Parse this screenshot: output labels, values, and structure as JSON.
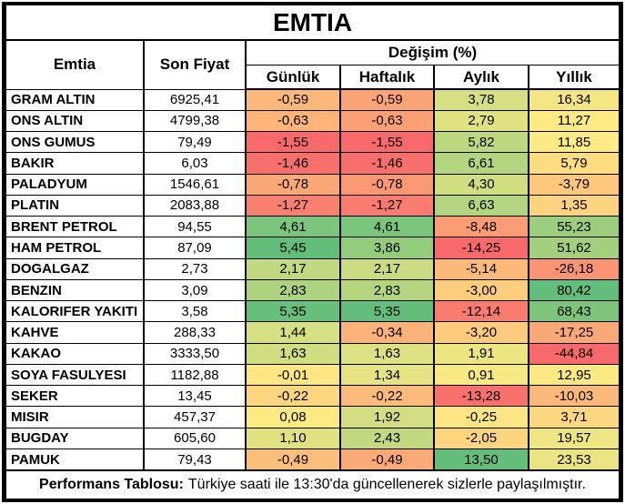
{
  "table": {
    "title": "EMTIA",
    "col_emtia": "Emtia",
    "col_price": "Son Fiyat",
    "col_change_group": "Değişim (%)",
    "periods": [
      "Günlük",
      "Haftalık",
      "Aylık",
      "Yıllık"
    ],
    "period_keys": [
      "gunluk",
      "haftalik",
      "aylik",
      "yillik"
    ]
  },
  "chart_data": {
    "type": "table",
    "title": "EMTIA",
    "columns": [
      "Emtia",
      "Son Fiyat",
      "Günlük",
      "Haftalık",
      "Aylık",
      "Yıllık"
    ],
    "change_group_label": "Değişim (%)",
    "decimal_separator": ",",
    "color_scale": {
      "min_color": "#F8696B",
      "mid_color": "#FFEB84",
      "max_color": "#63BE7B",
      "applied": "per-column 3-color scale"
    },
    "rows": [
      {
        "name": "GRAM ALTIN",
        "price": "6925,41",
        "changes": [
          "-0,59",
          "-0,59",
          "3,78",
          "16,34"
        ],
        "colors": [
          "#FCB87A",
          "#FBA476",
          "#D6DF81",
          "#F4E783"
        ]
      },
      {
        "name": "ONS ALTIN",
        "price": "4799,38",
        "changes": [
          "-0,63",
          "-0,63",
          "2,79",
          "11,27"
        ],
        "colors": [
          "#FCB479",
          "#FBA175",
          "#E1E282",
          "#FFEA83"
        ]
      },
      {
        "name": "ONS GUMUS",
        "price": "79,49",
        "changes": [
          "-1,55",
          "-1,55",
          "5,82",
          "11,85"
        ],
        "colors": [
          "#F8696B",
          "#F8696B",
          "#BED880",
          "#FEEB84"
        ]
      },
      {
        "name": "BAKIR",
        "price": "6,03",
        "changes": [
          "-1,46",
          "-1,46",
          "6,61",
          "5,79"
        ],
        "colors": [
          "#F8706C",
          "#F86E6C",
          "#B4D57F",
          "#FEDD81"
        ]
      },
      {
        "name": "PALADYUM",
        "price": "1546,61",
        "changes": [
          "-0,78",
          "-0,78",
          "4,30",
          "-3,79"
        ],
        "colors": [
          "#FBA877",
          "#FA9874",
          "#D0DD81",
          "#FDC77D"
        ]
      },
      {
        "name": "PLATIN",
        "price": "2083,88",
        "changes": [
          "-1,27",
          "-1,27",
          "6,63",
          "1,35"
        ],
        "colors": [
          "#F9806F",
          "#F97A6E",
          "#B4D57F",
          "#FDD37F"
        ]
      },
      {
        "name": "BRENT PETROL",
        "price": "94,55",
        "changes": [
          "4,61",
          "4,61",
          "-8,48",
          "55,23"
        ],
        "colors": [
          "#7BC57C",
          "#7BC57C",
          "#FA9C74",
          "#9CCE7E"
        ]
      },
      {
        "name": "HAM PETROL",
        "price": "87,09",
        "changes": [
          "5,45",
          "3,86",
          "-14,25",
          "51,62"
        ],
        "colors": [
          "#63BE7B",
          "#93CC7D",
          "#F8696B",
          "#A4D07E"
        ]
      },
      {
        "name": "DOGALGAZ",
        "price": "2,73",
        "changes": [
          "2,17",
          "2,17",
          "-5,14",
          "-26,18"
        ],
        "colors": [
          "#C1D980",
          "#CADB81",
          "#FCBA7A",
          "#FA9473"
        ]
      },
      {
        "name": "BENZIN",
        "price": "3,09",
        "changes": [
          "2,83",
          "2,83",
          "-3,00",
          "80,42"
        ],
        "colors": [
          "#AED37F",
          "#B5D57F",
          "#FDCD7E",
          "#63BE7B"
        ]
      },
      {
        "name": "KALORIFER YAKITI",
        "price": "3,58",
        "changes": [
          "5,35",
          "5,35",
          "-12,14",
          "68,43"
        ],
        "colors": [
          "#66BF7B",
          "#63BE7B",
          "#F97B6E",
          "#7EC57C"
        ]
      },
      {
        "name": "KAHVE",
        "price": "288,33",
        "changes": [
          "1,44",
          "-0,34",
          "-3,20",
          "-17,25"
        ],
        "colors": [
          "#D6DF81",
          "#FCB379",
          "#FDCB7D",
          "#FBA877"
        ]
      },
      {
        "name": "KAKAO",
        "price": "3333,50",
        "changes": [
          "1,63",
          "1,63",
          "1,91",
          "-44,84"
        ],
        "colors": [
          "#D1DD81",
          "#DCE182",
          "#ECE582",
          "#F8696B"
        ]
      },
      {
        "name": "SOYA FASULYESI",
        "price": "1182,88",
        "changes": [
          "-0,01",
          "1,34",
          "0,91",
          "12,95"
        ],
        "colors": [
          "#FEE783",
          "#E5E382",
          "#F8E983",
          "#FBEA83"
        ]
      },
      {
        "name": "SEKER",
        "price": "13,45",
        "changes": [
          "-0,22",
          "-0,22",
          "-13,28",
          "-10,03"
        ],
        "colors": [
          "#FDD680",
          "#FCBB7A",
          "#F8716C",
          "#FCB97A"
        ]
      },
      {
        "name": "MISIR",
        "price": "457,37",
        "changes": [
          "0,08",
          "1,92",
          "-0,25",
          "3,71"
        ],
        "colors": [
          "#FEEA83",
          "#D2DE81",
          "#FEE583",
          "#FED880"
        ]
      },
      {
        "name": "BUGDAY",
        "price": "605,60",
        "changes": [
          "1,10",
          "2,43",
          "-2,05",
          "19,57"
        ],
        "colors": [
          "#E0E282",
          "#C2D980",
          "#FDD57F",
          "#EEE683"
        ]
      },
      {
        "name": "PAMUK",
        "price": "79,43",
        "changes": [
          "-0,49",
          "-0,49",
          "13,50",
          "23,53"
        ],
        "colors": [
          "#FCBF7B",
          "#FBAA77",
          "#63BE7B",
          "#EAE582"
        ]
      }
    ]
  },
  "footer": {
    "label": "Performans Tablosu:",
    "text": "Türkiye saati ile 13:30'da güncellenerek sizlerle paylaşılmıştır."
  }
}
